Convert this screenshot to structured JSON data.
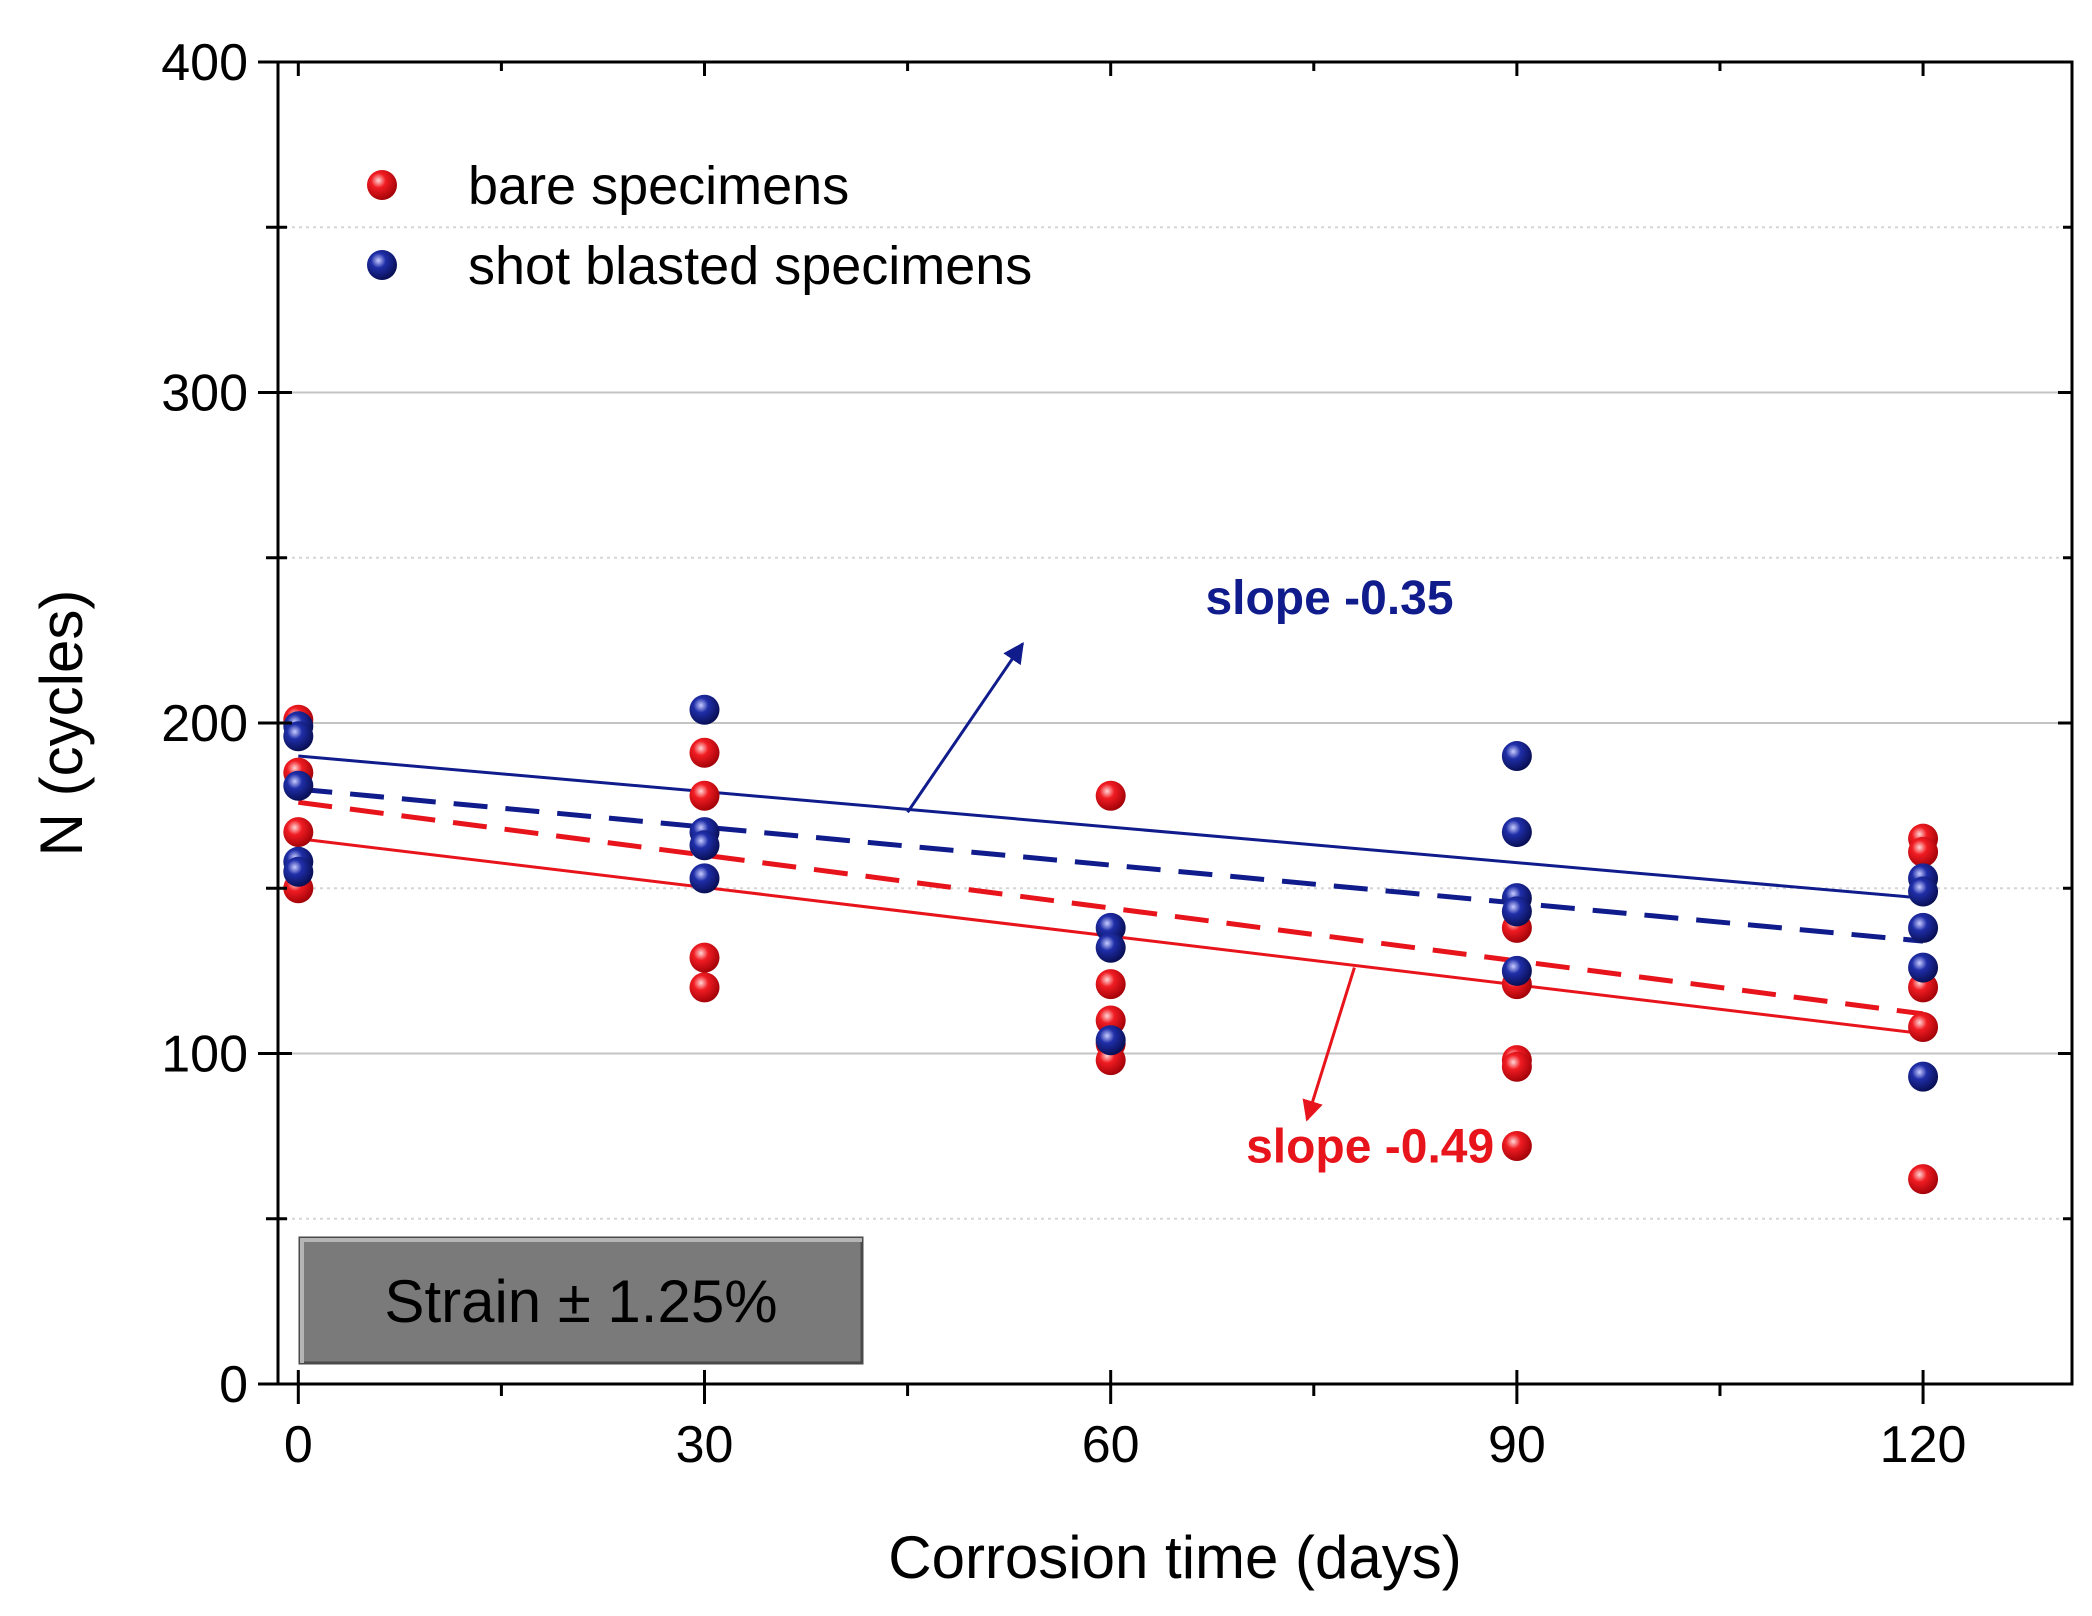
{
  "chart_data": {
    "type": "scatter",
    "xlabel": "Corrosion time (days)",
    "ylabel": "N (cycles)",
    "xlim": [
      -1.5,
      131
    ],
    "ylim": [
      0,
      400
    ],
    "x_ticks": [
      0,
      30,
      60,
      90,
      120
    ],
    "x_tick_labels": [
      "0",
      "30",
      "60",
      "90",
      "120"
    ],
    "y_ticks": [
      0,
      100,
      200,
      300,
      400
    ],
    "y_tick_labels": [
      "0",
      "100",
      "200",
      "300",
      "400"
    ],
    "y_minor_gridlines": [
      50,
      150,
      250,
      350
    ],
    "grid": true,
    "legend_position": "top-left",
    "series": [
      {
        "name": "bare specimens",
        "color": "#e8141c",
        "points": [
          [
            0,
            201
          ],
          [
            0,
            185
          ],
          [
            0,
            167
          ],
          [
            0,
            150
          ],
          [
            30,
            191
          ],
          [
            30,
            178
          ],
          [
            30,
            129
          ],
          [
            30,
            120
          ],
          [
            60,
            178
          ],
          [
            60,
            121
          ],
          [
            60,
            110
          ],
          [
            60,
            103
          ],
          [
            60,
            98
          ],
          [
            90,
            138
          ],
          [
            90,
            121
          ],
          [
            90,
            98
          ],
          [
            90,
            96
          ],
          [
            90,
            72
          ],
          [
            120,
            165
          ],
          [
            120,
            161
          ],
          [
            120,
            120
          ],
          [
            120,
            108
          ],
          [
            120,
            62
          ]
        ],
        "fits": [
          {
            "style": "solid",
            "x": [
              0,
              120
            ],
            "y": [
              165,
              106
            ]
          },
          {
            "style": "dashed",
            "x": [
              0,
              120
            ],
            "y": [
              176,
              112
            ]
          }
        ]
      },
      {
        "name": "shot blasted specimens",
        "color": "#101c8c",
        "points": [
          [
            0,
            199
          ],
          [
            0,
            196
          ],
          [
            0,
            181
          ],
          [
            0,
            158
          ],
          [
            0,
            155
          ],
          [
            30,
            204
          ],
          [
            30,
            167
          ],
          [
            30,
            163
          ],
          [
            30,
            153
          ],
          [
            60,
            138
          ],
          [
            60,
            132
          ],
          [
            60,
            104
          ],
          [
            90,
            190
          ],
          [
            90,
            167
          ],
          [
            90,
            147
          ],
          [
            90,
            143
          ],
          [
            90,
            125
          ],
          [
            120,
            153
          ],
          [
            120,
            149
          ],
          [
            120,
            138
          ],
          [
            120,
            126
          ],
          [
            120,
            93
          ]
        ],
        "fits": [
          {
            "style": "solid",
            "x": [
              0,
              120
            ],
            "y": [
              190,
              147
            ]
          },
          {
            "style": "dashed",
            "x": [
              0,
              120
            ],
            "y": [
              180,
              134
            ]
          }
        ]
      }
    ],
    "annotations": [
      {
        "text": "slope -0.35",
        "color": "#101c8c",
        "x": 67,
        "y": 233,
        "arrow_from": [
          45,
          173
        ],
        "arrow_to": [
          53.5,
          224
        ]
      },
      {
        "text": "slope -0.49",
        "color": "#e8141c",
        "x": 70,
        "y": 67,
        "arrow_from": [
          78,
          126
        ],
        "arrow_to": [
          74.5,
          80
        ]
      }
    ],
    "condition_box": {
      "text": "Strain ± 1.25%",
      "fill": "#7a7a7a"
    }
  }
}
